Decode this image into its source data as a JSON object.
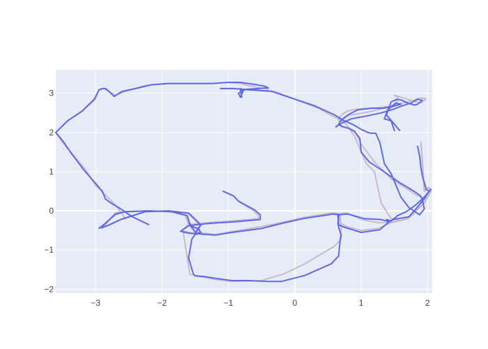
{
  "chart_data": {
    "type": "line",
    "title": "",
    "xlabel": "",
    "ylabel": "",
    "xlim": [
      -3.6,
      2.07
    ],
    "ylim": [
      -2.1,
      3.6
    ],
    "xticks": [
      -3,
      -2,
      -1,
      0,
      1,
      2
    ],
    "yticks": [
      -2,
      -1,
      0,
      1,
      2,
      3
    ],
    "grid": true,
    "legend": "none",
    "colors": {
      "plot_bg": "#e5ecf6",
      "grid": "#ffffff",
      "axis_text": "#444444"
    },
    "series": [
      {
        "color": "#c4b6c4",
        "width": 2,
        "opacity": 0.9,
        "x": [
          -1.08,
          -0.92,
          -0.85,
          -0.62,
          -0.55,
          -0.55,
          -0.9,
          -1.3,
          -1.6,
          -1.7,
          -1.6,
          -1.5,
          -1.4,
          -1.6,
          -1.9,
          -2.25,
          -2.6,
          -2.8,
          -2.9,
          -2.7,
          -2.55,
          -2.2,
          -1.85,
          -1.65,
          -1.6,
          -1.5,
          -1.2,
          -0.92,
          -0.5,
          -0.2,
          0.1,
          0.55,
          0.68,
          0.68,
          0.78,
          1.0,
          1.25,
          1.45,
          1.7,
          1.95,
          2.05,
          2.02,
          1.95,
          1.92,
          1.9
        ],
        "y": [
          0.5,
          0.38,
          0.25,
          0.0,
          -0.12,
          -0.2,
          -0.25,
          -0.3,
          -0.35,
          -0.5,
          -0.55,
          -0.6,
          -0.35,
          -0.05,
          0.0,
          -0.02,
          -0.2,
          -0.35,
          -0.45,
          -0.05,
          -0.02,
          0.0,
          -0.02,
          -0.12,
          -0.35,
          -0.55,
          -0.6,
          -0.52,
          -0.4,
          -0.3,
          -0.18,
          -0.05,
          -0.07,
          -0.3,
          -0.4,
          -0.5,
          -0.45,
          -0.3,
          -0.2,
          0.2,
          0.5,
          0.6,
          0.5,
          1.3,
          1.75
        ]
      },
      {
        "color": "#c4b6c4",
        "width": 2,
        "opacity": 0.9,
        "x": [
          -2.92,
          -2.94,
          -2.9,
          -2.7,
          -2.55,
          -2.2,
          -1.9,
          -1.65,
          -1.58,
          -1.4,
          -1.48,
          -1.68,
          -1.58,
          -1.2,
          -0.95,
          -0.5,
          -0.15,
          0.15,
          0.6,
          0.68,
          0.7,
          0.68,
          0.78,
          1.0,
          1.25,
          1.45,
          1.7,
          1.95,
          2.05,
          2.02,
          1.95,
          1.92,
          1.9
        ],
        "y": [
          -0.45,
          -0.4,
          -0.38,
          -0.1,
          -0.02,
          0.0,
          -0.02,
          -0.12,
          -0.35,
          -0.55,
          -0.6,
          -0.55,
          -1.62,
          -1.75,
          -1.8,
          -1.78,
          -1.6,
          -1.35,
          -0.9,
          -0.75,
          -0.45,
          -0.07,
          -0.05,
          -0.22,
          -0.3,
          -0.3,
          -0.2,
          0.2,
          0.5,
          0.6,
          0.5,
          1.3,
          1.75
        ]
      },
      {
        "color": "#c4b6c4",
        "width": 2,
        "opacity": 0.9,
        "x": [
          -1.12,
          -0.9,
          -0.75,
          -0.55,
          -0.3,
          0.0,
          0.35,
          0.65,
          0.75,
          0.8,
          0.9,
          1.08,
          1.2,
          1.25,
          1.3,
          1.45,
          1.6,
          1.78,
          1.95,
          1.83,
          1.7,
          1.45,
          1.2,
          1.0,
          0.9,
          0.8,
          0.7,
          0.66,
          0.7,
          0.8,
          0.95,
          1.2,
          1.5,
          1.55,
          1.52
        ],
        "y": [
          3.12,
          3.12,
          3.1,
          3.08,
          3.05,
          2.85,
          2.62,
          2.35,
          2.25,
          2.15,
          1.9,
          1.2,
          1.0,
          0.6,
          0.2,
          -0.2,
          -0.25,
          -0.1,
          0.35,
          0.4,
          0.55,
          0.82,
          1.25,
          1.7,
          2.05,
          2.12,
          2.15,
          2.3,
          2.45,
          2.55,
          2.6,
          2.62,
          2.68,
          2.82,
          2.86
        ]
      },
      {
        "color": "#c4b6c4",
        "width": 2,
        "opacity": 0.9,
        "x": [
          -3.6,
          -3.42,
          -3.2,
          -3.0,
          -2.95,
          -2.88,
          -2.8,
          -2.7,
          -2.55,
          -2.25,
          -1.9,
          -1.6,
          -1.25,
          -1.0,
          -0.82,
          -0.7,
          -0.55,
          -0.45,
          -0.4
        ],
        "y": [
          2.0,
          2.3,
          2.55,
          2.85,
          3.1,
          3.12,
          3.05,
          2.95,
          3.05,
          3.2,
          3.25,
          3.25,
          3.25,
          3.28,
          3.25,
          3.2,
          3.15,
          3.12,
          3.1
        ]
      },
      {
        "color": "#c4b6c4",
        "width": 2,
        "opacity": 0.9,
        "x": [
          -3.6,
          -3.5,
          -3.35,
          -3.15,
          -3.0,
          -2.85,
          -2.7,
          -2.6,
          -2.55
        ],
        "y": [
          2.0,
          1.75,
          1.45,
          1.05,
          0.65,
          0.4,
          0.15,
          -0.08,
          -0.2
        ]
      },
      {
        "color": "#c4b6c4",
        "width": 2,
        "opacity": 0.9,
        "x": [
          0.62,
          0.7,
          0.85,
          1.1,
          1.35,
          1.5,
          1.62,
          1.75,
          1.88,
          1.98,
          1.9,
          1.8,
          1.7,
          1.6,
          1.5,
          1.55
        ],
        "y": [
          2.12,
          2.32,
          2.45,
          2.52,
          2.62,
          2.7,
          2.75,
          2.8,
          2.88,
          2.86,
          2.75,
          2.8,
          2.85,
          2.9,
          2.95,
          2.9
        ]
      },
      {
        "color": "#5a62ea",
        "width": 2,
        "opacity": 0.95,
        "x": [
          -1.08,
          -0.92,
          -0.85,
          -0.6,
          -0.52,
          -0.52,
          -0.9,
          -1.3,
          -1.6,
          -1.72,
          -1.62,
          -1.5,
          -1.42,
          -1.6,
          -1.9,
          -2.25,
          -2.62,
          -2.82,
          -2.95,
          -2.92,
          -2.7,
          -2.55,
          -2.2,
          -1.85,
          -1.62,
          -1.58,
          -1.48,
          -1.2,
          -0.95,
          -0.5,
          -0.2,
          0.12,
          0.58,
          0.66,
          0.65,
          0.75,
          1.0,
          1.28,
          1.42,
          1.48,
          1.55,
          1.72,
          1.95,
          2.02,
          1.98,
          1.92,
          1.9,
          1.88,
          1.85
        ],
        "y": [
          0.5,
          0.38,
          0.25,
          0.02,
          -0.1,
          -0.22,
          -0.28,
          -0.32,
          -0.38,
          -0.52,
          -0.56,
          -0.58,
          -0.36,
          -0.06,
          0.0,
          -0.02,
          -0.22,
          -0.38,
          -0.44,
          -0.42,
          -0.08,
          -0.02,
          0.0,
          -0.02,
          -0.12,
          -0.35,
          -0.58,
          -0.62,
          -0.55,
          -0.45,
          -0.32,
          -0.2,
          -0.08,
          -0.1,
          -0.35,
          -0.42,
          -0.55,
          -0.48,
          -0.28,
          -0.22,
          -0.2,
          -0.15,
          0.3,
          0.5,
          0.55,
          0.9,
          1.1,
          1.4,
          1.65
        ]
      },
      {
        "color": "#5a62ea",
        "width": 2,
        "opacity": 0.95,
        "x": [
          -1.58,
          -1.55,
          -1.45,
          -1.42,
          -1.5,
          -1.55,
          -1.6,
          -1.53,
          -1.5,
          -1.35,
          -1.2,
          -0.95,
          -0.7,
          -0.4,
          -0.2,
          0.15,
          0.55,
          0.66,
          0.68,
          0.7,
          0.66,
          0.65,
          0.8,
          1.05,
          1.3,
          1.42,
          1.38,
          1.45,
          1.55,
          1.68,
          1.82,
          1.95,
          2.05
        ],
        "y": [
          -0.32,
          -0.4,
          -0.45,
          -0.55,
          -0.6,
          -0.72,
          -1.2,
          -1.6,
          -1.66,
          -1.68,
          -1.72,
          -1.78,
          -1.78,
          -1.8,
          -1.8,
          -1.65,
          -1.35,
          -1.15,
          -0.8,
          -0.62,
          -0.42,
          -0.1,
          -0.08,
          -0.2,
          -0.22,
          -0.28,
          -0.22,
          -0.26,
          -0.12,
          -0.02,
          0.15,
          0.35,
          0.55
        ]
      },
      {
        "color": "#5a62ea",
        "width": 2,
        "opacity": 0.95,
        "x": [
          -1.12,
          -0.92,
          -0.78,
          -0.6,
          -0.35,
          -0.05,
          0.3,
          0.6,
          0.72,
          0.88,
          1.0,
          1.1,
          1.15,
          1.22,
          1.28,
          1.35,
          1.45,
          1.6,
          1.72,
          1.88,
          1.95,
          1.92,
          1.88,
          1.75,
          1.58,
          1.3,
          1.12,
          1.0,
          0.98,
          0.9,
          0.82,
          0.72,
          0.66,
          0.7,
          0.8,
          0.95,
          1.15,
          1.32,
          1.45,
          1.55,
          1.6,
          1.52,
          1.4,
          1.35,
          1.45,
          1.5
        ],
        "y": [
          3.12,
          3.12,
          3.1,
          3.08,
          3.05,
          2.88,
          2.68,
          2.45,
          2.32,
          2.2,
          2.08,
          2.0,
          1.98,
          1.98,
          1.75,
          1.2,
          0.95,
          0.35,
          0.08,
          -0.1,
          0.05,
          0.3,
          0.4,
          0.55,
          0.72,
          1.05,
          1.25,
          1.5,
          1.85,
          2.02,
          2.1,
          2.15,
          2.2,
          2.32,
          2.45,
          2.58,
          2.62,
          2.62,
          2.65,
          2.7,
          2.72,
          2.75,
          2.58,
          2.35,
          2.3,
          2.05
        ]
      },
      {
        "color": "#5a62ea",
        "width": 2,
        "opacity": 0.95,
        "x": [
          -3.6,
          -3.42,
          -3.2,
          -3.02,
          -2.95,
          -2.9,
          -2.85,
          -2.8,
          -2.72,
          -2.6,
          -2.4,
          -2.15,
          -1.9,
          -1.6,
          -1.25,
          -1.0,
          -0.82,
          -0.7,
          -0.58,
          -0.45,
          -0.4,
          -0.55,
          -0.75,
          -0.85,
          -0.82,
          -0.78,
          -0.82,
          -0.8
        ],
        "y": [
          2.0,
          2.3,
          2.55,
          2.85,
          3.08,
          3.12,
          3.12,
          3.05,
          2.92,
          3.05,
          3.12,
          3.22,
          3.25,
          3.25,
          3.25,
          3.28,
          3.28,
          3.25,
          3.22,
          3.18,
          3.14,
          3.12,
          3.1,
          3.0,
          2.9,
          3.05,
          3.12,
          2.9
        ]
      },
      {
        "color": "#5a62ea",
        "width": 2,
        "opacity": 0.95,
        "x": [
          -3.6,
          -3.5,
          -3.38,
          -3.18,
          -3.0,
          -2.9,
          -2.85,
          -2.75,
          -2.62,
          -2.45,
          -2.2
        ],
        "y": [
          2.0,
          1.8,
          1.5,
          1.05,
          0.7,
          0.5,
          0.3,
          0.18,
          0.05,
          -0.15,
          -0.35
        ]
      },
      {
        "color": "#5a62ea",
        "width": 2,
        "opacity": 0.95,
        "x": [
          0.62,
          0.72,
          0.85,
          1.08,
          1.3,
          1.5,
          1.62,
          1.75,
          1.85,
          1.92,
          1.85,
          1.8,
          1.7,
          1.62,
          1.55,
          1.45,
          1.38,
          1.48,
          1.58
        ],
        "y": [
          2.15,
          2.25,
          2.35,
          2.42,
          2.5,
          2.6,
          2.68,
          2.75,
          2.85,
          2.82,
          2.72,
          2.7,
          2.75,
          2.82,
          2.85,
          2.78,
          2.45,
          2.25,
          2.05
        ]
      }
    ]
  }
}
